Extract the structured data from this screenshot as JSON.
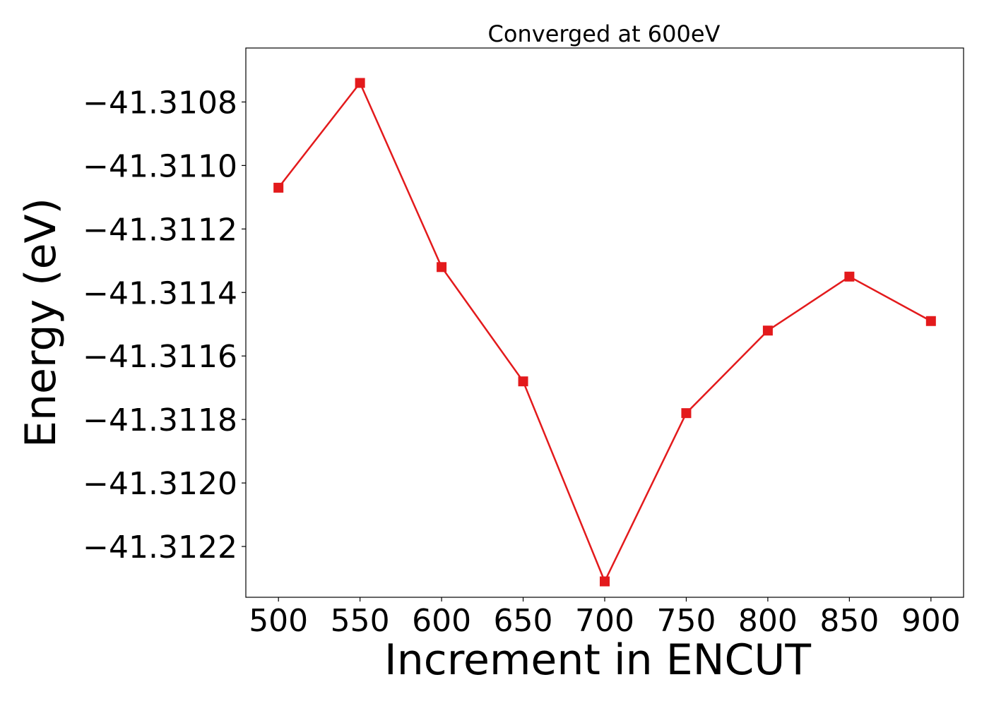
{
  "chart_data": {
    "type": "line",
    "title": "Converged at 600eV",
    "xlabel": "Increment in ENCUT",
    "ylabel": "Energy (eV)",
    "x": [
      500,
      550,
      600,
      650,
      700,
      750,
      800,
      850,
      900
    ],
    "series": [
      {
        "values": [
          -41.31107,
          -41.31074,
          -41.31132,
          -41.31168,
          -41.31231,
          -41.31178,
          -41.31152,
          -41.31135,
          -41.31149
        ],
        "color": "#e31a1c",
        "marker": "square"
      }
    ],
    "xticks": [
      500,
      550,
      600,
      650,
      700,
      750,
      800,
      850,
      900
    ],
    "xtick_labels": [
      "500",
      "550",
      "600",
      "650",
      "700",
      "750",
      "800",
      "850",
      "900"
    ],
    "yticks": [
      -41.3108,
      -41.311,
      -41.3112,
      -41.3114,
      -41.3116,
      -41.3118,
      -41.312,
      -41.3122
    ],
    "ytick_labels": [
      "−41.3108",
      "−41.3110",
      "−41.3112",
      "−41.3114",
      "−41.3116",
      "−41.3118",
      "−41.3120",
      "−41.3122"
    ],
    "xlim": [
      480,
      920
    ],
    "ylim": [
      -41.31236,
      -41.31063
    ],
    "grid": false,
    "legend": "none"
  }
}
